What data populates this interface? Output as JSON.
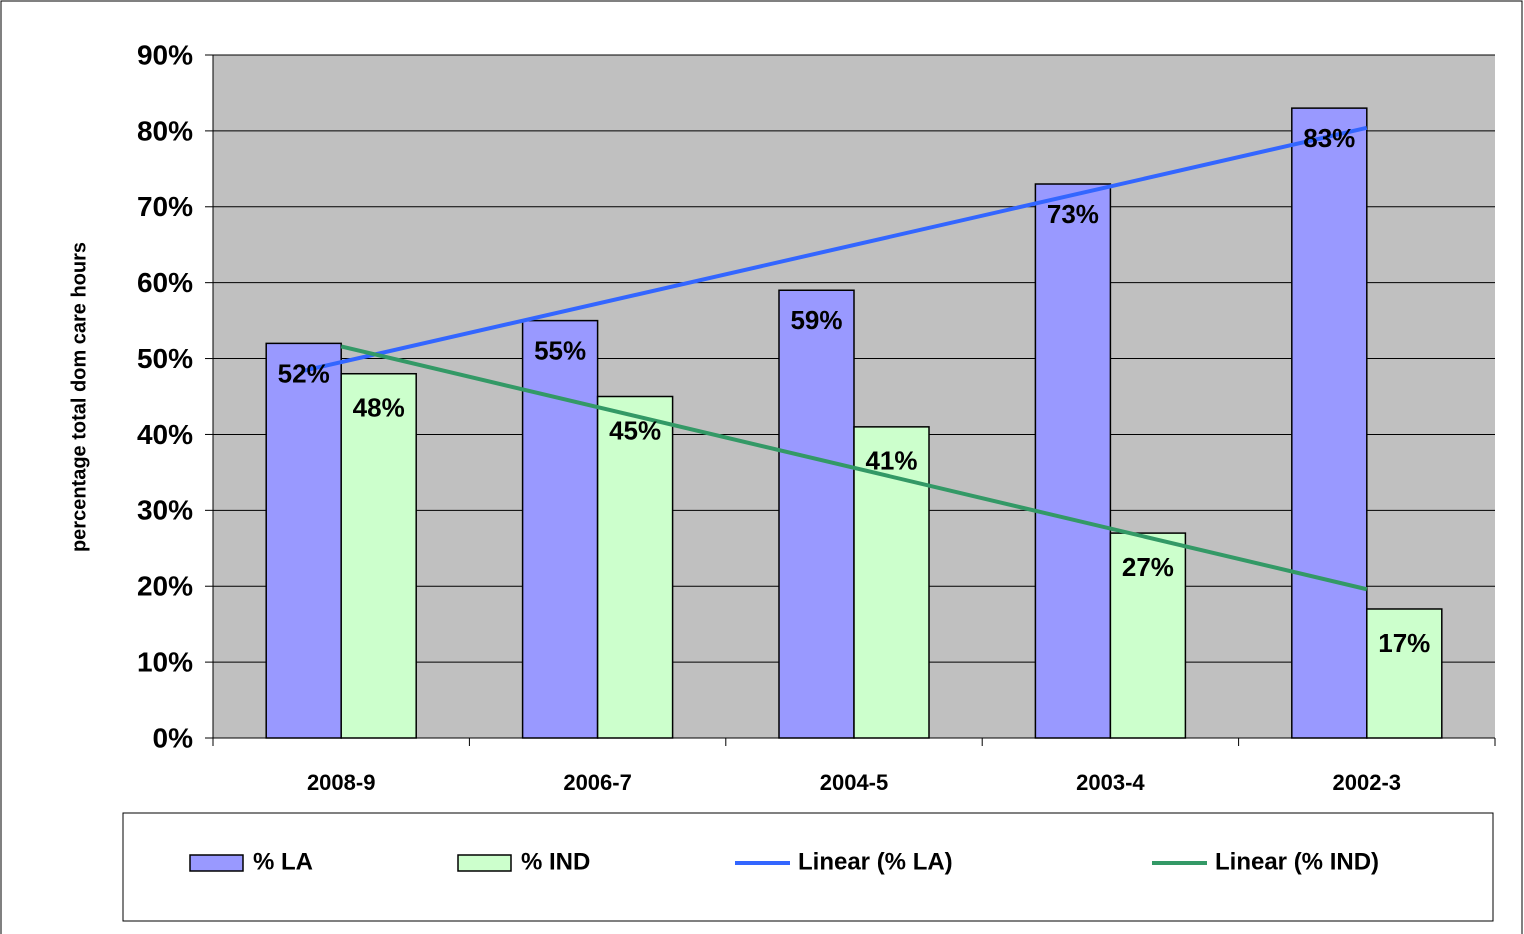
{
  "chart_data": {
    "type": "bar",
    "y_label": "percentage total dom care hours",
    "categories": [
      "2008-9",
      "2006-7",
      "2004-5",
      "2003-4",
      "2002-3"
    ],
    "series": [
      {
        "name": "% LA",
        "color": "#9999ff",
        "values": [
          52,
          55,
          59,
          73,
          83
        ],
        "value_labels": [
          "52%",
          "55%",
          "59%",
          "73%",
          "83%"
        ],
        "trendline": {
          "name": "Linear (% LA)",
          "color": "#3366ff"
        }
      },
      {
        "name": "% IND",
        "color": "#ccffcc",
        "values": [
          48,
          45,
          41,
          27,
          17
        ],
        "value_labels": [
          "48%",
          "45%",
          "41%",
          "27%",
          "17%"
        ],
        "trendline": {
          "name": "Linear (% IND)",
          "color": "#339966"
        }
      }
    ],
    "ylim": [
      0,
      90
    ],
    "yticks": [
      {
        "value": 0,
        "label": "0%"
      },
      {
        "value": 10,
        "label": "10%"
      },
      {
        "value": 20,
        "label": "20%"
      },
      {
        "value": 30,
        "label": "30%"
      },
      {
        "value": 40,
        "label": "40%"
      },
      {
        "value": 50,
        "label": "50%"
      },
      {
        "value": 60,
        "label": "60%"
      },
      {
        "value": 70,
        "label": "70%"
      },
      {
        "value": 80,
        "label": "80%"
      },
      {
        "value": 90,
        "label": "90%"
      }
    ],
    "grid": true,
    "legend": "bottom",
    "plot_background": "#c0c0c0"
  }
}
